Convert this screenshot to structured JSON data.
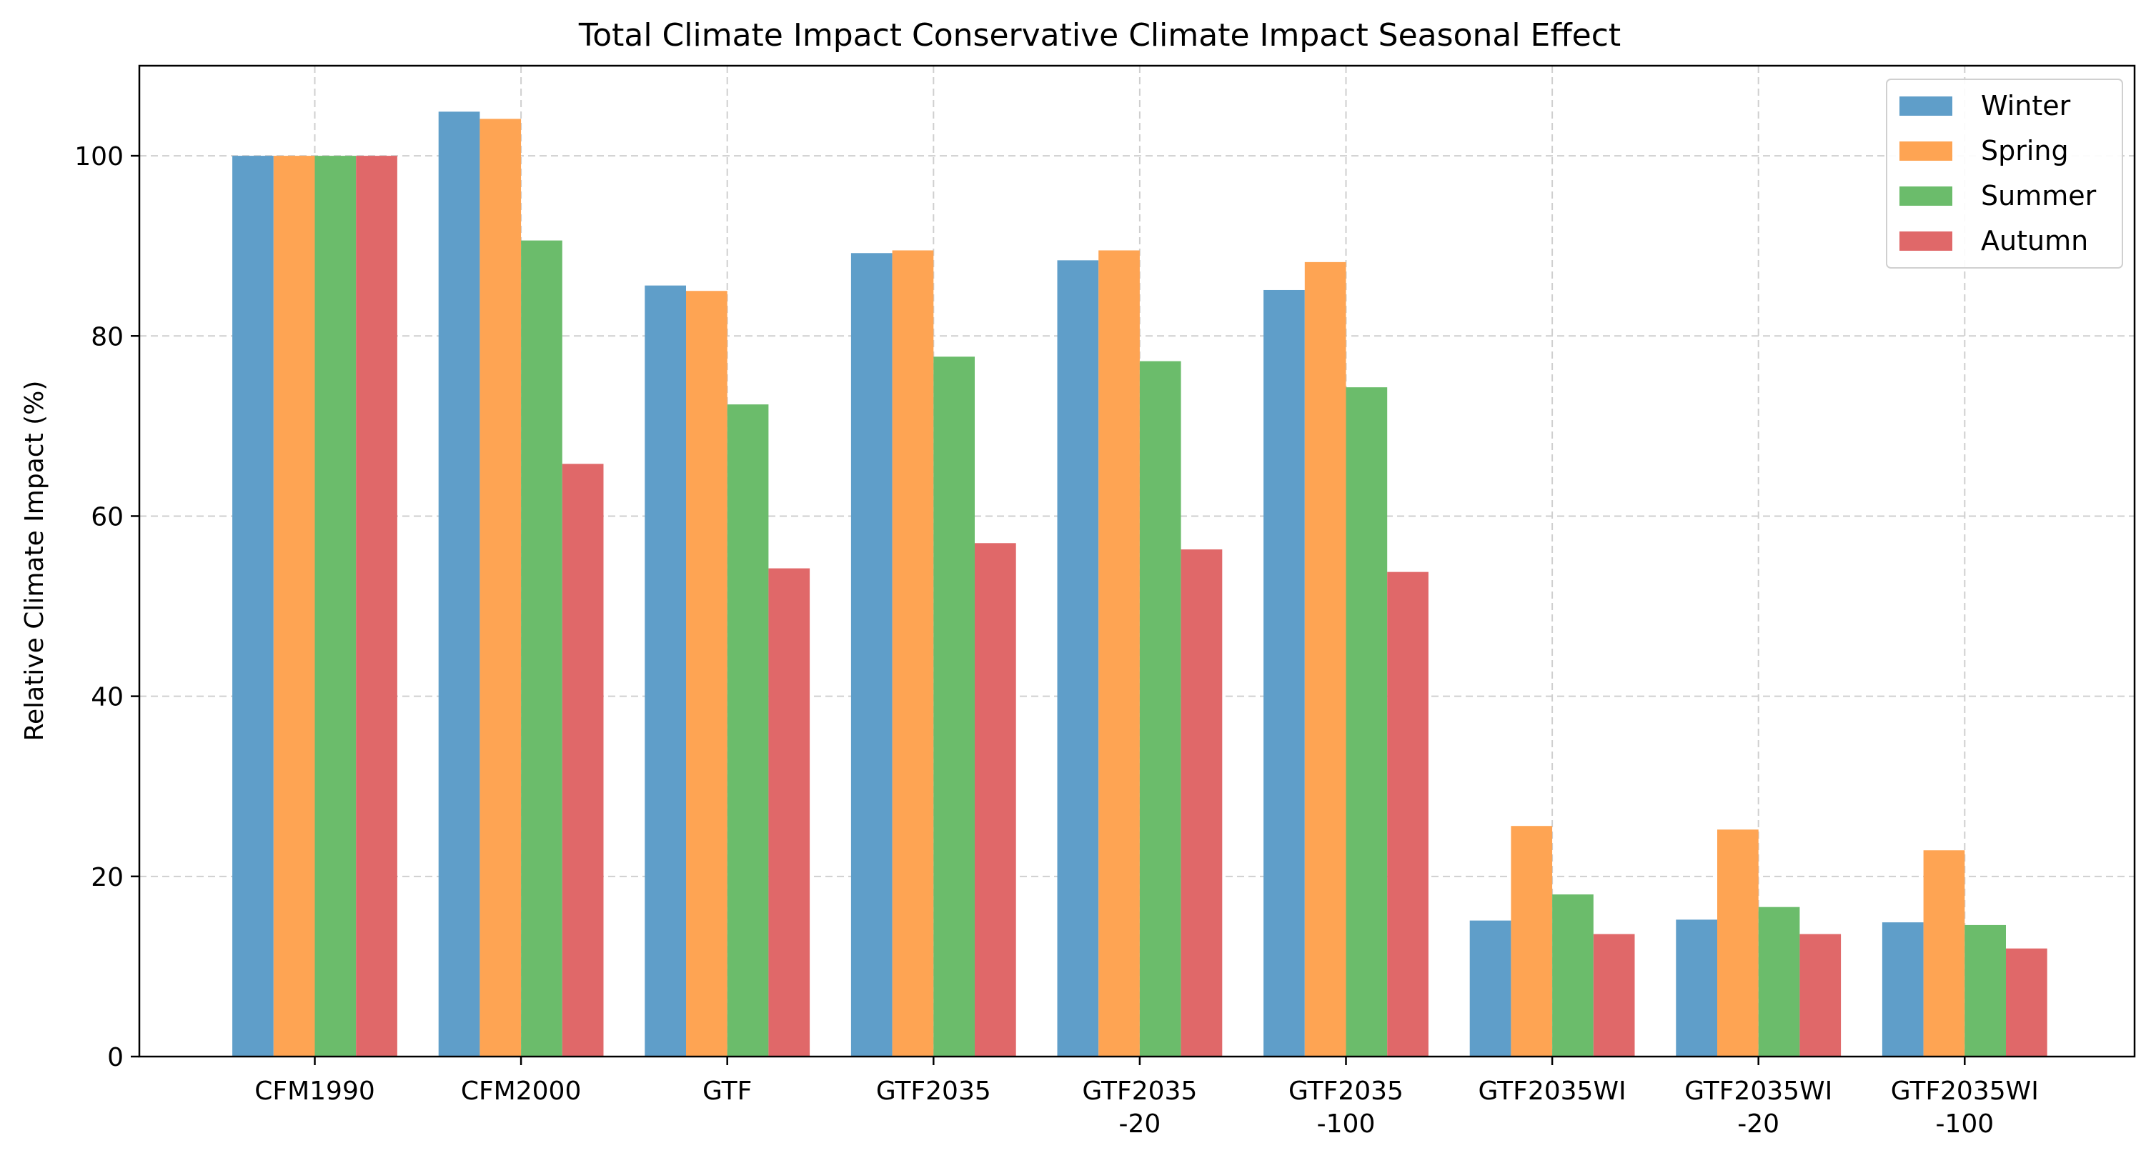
{
  "chart_data": {
    "type": "bar",
    "title": "Total Climate Impact Conservative Climate Impact Seasonal Effect",
    "xlabel": "",
    "ylabel": "Relative Climate Impact (%)",
    "ylim": [
      0,
      110
    ],
    "yticks": [
      0,
      20,
      40,
      60,
      80,
      100
    ],
    "grid": true,
    "legend_position": "top-right",
    "categories": [
      [
        "CFM1990"
      ],
      [
        "CFM2000"
      ],
      [
        "GTF"
      ],
      [
        "GTF2035"
      ],
      [
        "GTF2035",
        "-20"
      ],
      [
        "GTF2035",
        "-100"
      ],
      [
        "GTF2035WI"
      ],
      [
        "GTF2035WI",
        "-20"
      ],
      [
        "GTF2035WI",
        "-100"
      ]
    ],
    "series": [
      {
        "name": "Winter",
        "color": "#5f9ec9",
        "values": [
          100,
          104.9,
          85.6,
          89.2,
          88.4,
          85.1,
          15.1,
          15.2,
          14.9
        ]
      },
      {
        "name": "Spring",
        "color": "#fea453",
        "values": [
          100,
          104.1,
          85.0,
          89.5,
          89.5,
          88.2,
          25.6,
          25.2,
          22.9
        ]
      },
      {
        "name": "Summer",
        "color": "#6bbc6b",
        "values": [
          100,
          90.6,
          72.4,
          77.7,
          77.2,
          74.3,
          18.0,
          16.6,
          14.6
        ]
      },
      {
        "name": "Autumn",
        "color": "#e06869",
        "values": [
          100,
          65.8,
          54.2,
          57.0,
          56.3,
          53.8,
          13.6,
          13.6,
          12.0
        ]
      }
    ]
  }
}
